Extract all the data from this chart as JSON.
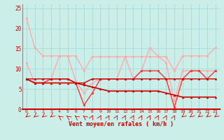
{
  "xlabel": "Vent moyen/en rafales ( km/h )",
  "background_color": "#cceee8",
  "grid_color": "#aaddda",
  "x_ticks": [
    0,
    1,
    2,
    3,
    4,
    5,
    6,
    7,
    8,
    9,
    10,
    11,
    12,
    13,
    14,
    15,
    16,
    17,
    18,
    19,
    20,
    21,
    22,
    23
  ],
  "ylim": [
    0,
    26
  ],
  "xlim": [
    -0.5,
    23.5
  ],
  "yticks": [
    0,
    5,
    10,
    15,
    20,
    25
  ],
  "series": [
    {
      "x": [
        0,
        1,
        2,
        3,
        4,
        5,
        6,
        7,
        8,
        9,
        10,
        11,
        12,
        13,
        14,
        15,
        16,
        17,
        18,
        19,
        20,
        21,
        22,
        23
      ],
      "y": [
        22.5,
        15.2,
        13.2,
        13.2,
        13.2,
        13.2,
        13.2,
        9.5,
        13.0,
        13.0,
        13.0,
        13.0,
        13.0,
        13.0,
        13.0,
        13.0,
        13.0,
        13.0,
        9.5,
        13.2,
        13.2,
        13.2,
        13.2,
        15.2
      ],
      "color": "#ffaaaa",
      "lw": 1.0,
      "marker": "o",
      "ms": 2.0
    },
    {
      "x": [
        0,
        1,
        2,
        3,
        4,
        5,
        6,
        7,
        8,
        9,
        10,
        11,
        12,
        13,
        14,
        15,
        16,
        17,
        18,
        19,
        20,
        21,
        22,
        23
      ],
      "y": [
        11.5,
        6.5,
        6.5,
        7.5,
        13.2,
        13.2,
        7.0,
        4.0,
        6.5,
        7.5,
        7.5,
        7.5,
        13.0,
        7.5,
        9.5,
        15.2,
        13.2,
        11.5,
        2.0,
        9.5,
        9.5,
        9.5,
        9.5,
        9.5
      ],
      "color": "#ffaaaa",
      "lw": 1.0,
      "marker": "o",
      "ms": 2.0
    },
    {
      "x": [
        0,
        1,
        2,
        3,
        4,
        5,
        6,
        7,
        8,
        9,
        10,
        11,
        12,
        13,
        14,
        15,
        16,
        17,
        18,
        19,
        20,
        21,
        22,
        23
      ],
      "y": [
        7.5,
        6.5,
        6.5,
        7.5,
        7.5,
        7.5,
        6.5,
        1.0,
        4.0,
        7.5,
        7.5,
        7.5,
        7.5,
        7.5,
        9.5,
        9.5,
        9.5,
        7.5,
        0.5,
        7.5,
        9.5,
        9.5,
        7.5,
        9.5
      ],
      "color": "#ff3333",
      "lw": 1.0,
      "marker": "o",
      "ms": 2.0
    },
    {
      "x": [
        0,
        1,
        2,
        3,
        4,
        5,
        6,
        7,
        8,
        9,
        10,
        11,
        12,
        13,
        14,
        15,
        16,
        17,
        18,
        19,
        20,
        21,
        22,
        23
      ],
      "y": [
        7.5,
        6.5,
        6.5,
        6.5,
        6.5,
        6.5,
        6.5,
        6.0,
        5.5,
        5.0,
        4.5,
        4.5,
        4.5,
        4.5,
        4.5,
        4.5,
        4.5,
        4.0,
        3.5,
        3.0,
        3.0,
        3.0,
        3.0,
        3.0
      ],
      "color": "#cc0000",
      "lw": 1.2,
      "marker": "^",
      "ms": 2.0
    },
    {
      "x": [
        0,
        1,
        2,
        3,
        4,
        5,
        6,
        7,
        8,
        9,
        10,
        11,
        12,
        13,
        14,
        15,
        16,
        17,
        18,
        19,
        20,
        21,
        22,
        23
      ],
      "y": [
        7.5,
        7.5,
        7.5,
        7.5,
        7.5,
        7.5,
        6.5,
        6.5,
        7.5,
        7.5,
        7.5,
        7.5,
        7.5,
        7.5,
        7.5,
        7.5,
        7.5,
        7.5,
        7.5,
        7.5,
        7.5,
        7.5,
        7.5,
        7.5
      ],
      "color": "#cc0000",
      "lw": 1.0,
      "marker": "o",
      "ms": 1.8
    }
  ],
  "arrow_color": "#cc0000",
  "arrow_angles": [
    200,
    200,
    200,
    200,
    160,
    160,
    160,
    160,
    45,
    45,
    45,
    45,
    45,
    45,
    45,
    45,
    45,
    45,
    45,
    200,
    200,
    200,
    200,
    200
  ]
}
